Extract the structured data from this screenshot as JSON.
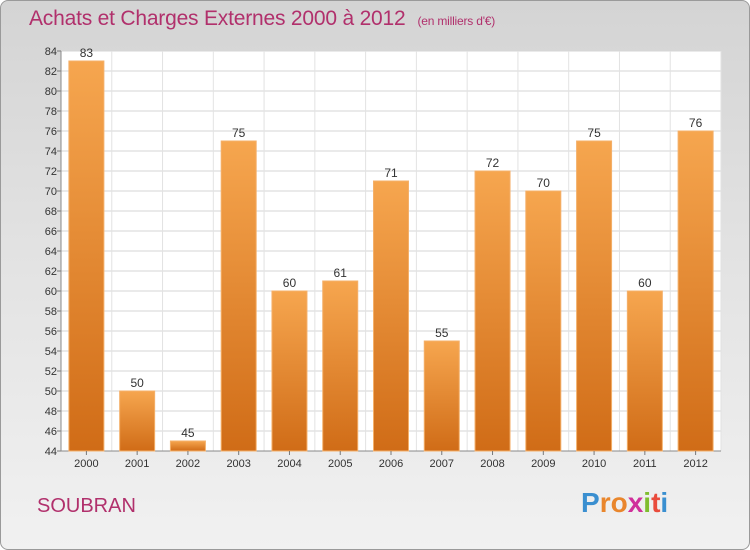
{
  "header": {
    "title": "Achats et Charges Externes 2000 à 2012",
    "subtitle": "(en milliers d'€)"
  },
  "footer": {
    "commune": "SOUBRAN",
    "logo_letters": [
      "P",
      "r",
      "o",
      "x",
      "i",
      "t",
      "i"
    ],
    "logo_colors": [
      "#3a8fd0",
      "#e9862c",
      "#e9862c",
      "#d0309b",
      "#7fbd2f",
      "#e94b3c",
      "#3a8fd0"
    ]
  },
  "chart_data": {
    "type": "bar",
    "categories": [
      "2000",
      "2001",
      "2002",
      "2003",
      "2004",
      "2005",
      "2006",
      "2007",
      "2008",
      "2009",
      "2010",
      "2011",
      "2012"
    ],
    "values": [
      83,
      50,
      45,
      75,
      60,
      61,
      71,
      55,
      72,
      70,
      75,
      60,
      76
    ],
    "data_labels": [
      "83",
      "50",
      "45",
      "75",
      "60",
      "61",
      "71",
      "55",
      "72",
      "70",
      "75",
      "60",
      "76"
    ],
    "ylim": [
      44,
      84
    ],
    "yticks": [
      44,
      46,
      48,
      50,
      52,
      54,
      56,
      58,
      60,
      62,
      64,
      66,
      68,
      70,
      72,
      74,
      76,
      78,
      80,
      82,
      84
    ],
    "grid": true,
    "bar_color": "#f0983e"
  }
}
